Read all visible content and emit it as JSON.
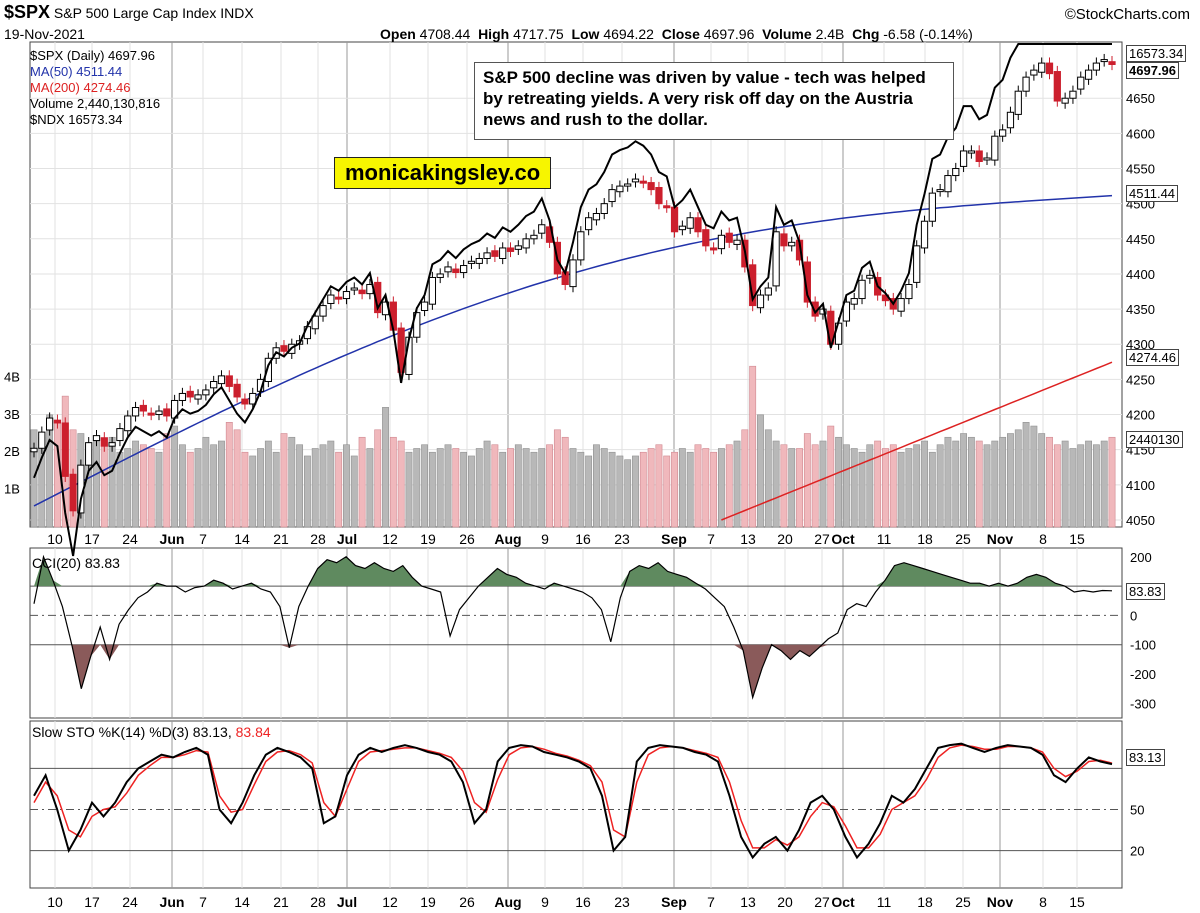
{
  "header": {
    "symbol": "$SPX",
    "name": "S&P 500 Large Cap Index",
    "exchange": "INDX",
    "date": "19-Nov-2021",
    "brand": "©StockCharts.com",
    "stats": {
      "open_label": "Open",
      "open": "4708.44",
      "high_label": "High",
      "high": "4717.75",
      "low_label": "Low",
      "low": "4694.22",
      "close_label": "Close",
      "close": "4697.96",
      "volume_label": "Volume",
      "volume": "2.4B",
      "chg_label": "Chg",
      "chg": "-6.58 (-0.14%)"
    }
  },
  "legend": {
    "spx": "$SPX (Daily) 4697.96",
    "ma50": "MA(50) 4511.44",
    "ma200": "MA(200) 4274.46",
    "volume": "Volume 2,440,130,816",
    "ndx": "$NDX 16573.34"
  },
  "annotation": {
    "note": "S&P 500 decline was driven by value - tech was helped by retreating yields. A very risk off day on the Austria news and rush to the dollar.",
    "site": "monicakingsley.co"
  },
  "colors": {
    "up": "#000000",
    "down": "#cc1f2d",
    "ma50": "#2233aa",
    "ma200": "#dd2222",
    "vol_up": "#b8b8b8",
    "vol_down": "#f0b8bc",
    "cci_pos": "#5f8a5f",
    "cci_neg": "#8a5a5a",
    "sto_d": "#ee2222"
  },
  "chart_data": {
    "type": "candlestick",
    "price_axis": {
      "ylim": [
        4040,
        4730
      ],
      "ticks": [
        4050,
        4100,
        4150,
        4200,
        4250,
        4300,
        4350,
        4400,
        4450,
        4500,
        4550,
        4600,
        4650
      ]
    },
    "volume_axis": {
      "labels": [
        "1B",
        "2B",
        "3B",
        "4B"
      ]
    },
    "x_labels": [
      "10",
      "17",
      "24",
      "Jun",
      "7",
      "14",
      "21",
      "28",
      "Jul",
      "12",
      "19",
      "26",
      "Aug",
      "9",
      "16",
      "23",
      "Sep",
      "7",
      "13",
      "20",
      "27",
      "Oct",
      "11",
      "18",
      "25",
      "Nov",
      "8",
      "15"
    ],
    "month_labels": [
      "Jun",
      "Jul",
      "Aug",
      "Sep",
      "Oct",
      "Nov"
    ],
    "right_tags": {
      "ndx": "16573.34",
      "close": "4697.96",
      "ma50": "4511.44",
      "ma200": "4274.46",
      "volume": "2440130"
    },
    "close": [
      4152,
      4175,
      4195,
      4188,
      4112,
      4063,
      4128,
      4160,
      4170,
      4155,
      4160,
      4180,
      4198,
      4210,
      4205,
      4200,
      4205,
      4198,
      4220,
      4230,
      4225,
      4228,
      4235,
      4247,
      4255,
      4240,
      4225,
      4215,
      4230,
      4250,
      4280,
      4295,
      4290,
      4300,
      4305,
      4325,
      4340,
      4355,
      4370,
      4365,
      4375,
      4380,
      4372,
      4385,
      4345,
      4360,
      4320,
      4260,
      4310,
      4345,
      4360,
      4395,
      4400,
      4410,
      4402,
      4412,
      4418,
      4422,
      4430,
      4425,
      4437,
      4432,
      4440,
      4450,
      4455,
      4470,
      4445,
      4400,
      4385,
      4420,
      4460,
      4480,
      4486,
      4500,
      4520,
      4525,
      4528,
      4535,
      4530,
      4520,
      4500,
      4495,
      4460,
      4468,
      4480,
      4460,
      4440,
      4436,
      4455,
      4445,
      4448,
      4410,
      4355,
      4370,
      4380,
      4460,
      4440,
      4445,
      4420,
      4360,
      4340,
      4350,
      4300,
      4330,
      4360,
      4365,
      4391,
      4398,
      4370,
      4362,
      4350,
      4365,
      4385,
      4440,
      4475,
      4515,
      4520,
      4540,
      4550,
      4575,
      4575,
      4560,
      4565,
      4596,
      4605,
      4630,
      4660,
      4680,
      4690,
      4700,
      4685,
      4646,
      4650,
      4660,
      4680,
      4690,
      4700,
      4705,
      4698
    ],
    "ma50_endpoints": [
      4070,
      4511.44
    ],
    "ma200_endpoints": [
      4050,
      4274.46
    ],
    "volume_bn": [
      2.6,
      2.4,
      3.0,
      2.8,
      3.5,
      2.6,
      2.5,
      2.2,
      2.3,
      2.2,
      2.4,
      2.0,
      2.1,
      2.3,
      2.2,
      2.1,
      2.0,
      2.5,
      2.7,
      2.2,
      2.0,
      2.1,
      2.4,
      2.2,
      2.3,
      2.8,
      2.6,
      2.0,
      1.9,
      2.1,
      2.3,
      2.0,
      2.5,
      2.4,
      2.2,
      1.9,
      2.1,
      2.2,
      2.3,
      2.0,
      2.2,
      1.9,
      2.4,
      2.1,
      2.6,
      3.2,
      2.4,
      2.3,
      2.0,
      2.1,
      2.2,
      2.0,
      2.1,
      2.2,
      2.1,
      2.0,
      1.9,
      2.1,
      2.3,
      2.2,
      2.0,
      2.1,
      2.2,
      2.1,
      2.0,
      2.1,
      2.2,
      2.6,
      2.4,
      2.1,
      2.0,
      1.9,
      2.2,
      2.1,
      2.0,
      1.9,
      1.8,
      1.9,
      2.0,
      2.1,
      2.2,
      1.9,
      2.0,
      2.1,
      2.0,
      2.2,
      2.1,
      2.0,
      2.1,
      2.2,
      2.3,
      2.6,
      4.3,
      3.0,
      2.6,
      2.3,
      2.2,
      2.1,
      2.1,
      2.5,
      2.2,
      2.3,
      2.7,
      2.4,
      2.2,
      2.1,
      2.0,
      2.2,
      2.3,
      2.1,
      2.2,
      2.0,
      2.1,
      2.2,
      2.3,
      2.0,
      2.2,
      2.4,
      2.3,
      2.5,
      2.4,
      2.3,
      2.2,
      2.3,
      2.4,
      2.5,
      2.6,
      2.8,
      2.7,
      2.5,
      2.4,
      2.2,
      2.3,
      2.1,
      2.2,
      2.3,
      2.2,
      2.3,
      2.4
    ],
    "cci": {
      "label": "CCI(20) 83.83",
      "value": "83.83",
      "ylim": [
        -350,
        230
      ],
      "ticks": [
        200,
        0,
        -100,
        -200,
        -300
      ],
      "values": [
        40,
        200,
        120,
        30,
        -100,
        -250,
        -140,
        -40,
        -150,
        -30,
        20,
        60,
        80,
        110,
        100,
        100,
        80,
        95,
        100,
        120,
        110,
        90,
        100,
        110,
        90,
        80,
        30,
        -110,
        30,
        100,
        160,
        190,
        180,
        200,
        170,
        160,
        180,
        160,
        150,
        170,
        130,
        100,
        90,
        80,
        -70,
        20,
        60,
        100,
        130,
        160,
        140,
        130,
        110,
        100,
        90,
        110,
        100,
        90,
        80,
        60,
        20,
        -90,
        60,
        150,
        170,
        160,
        180,
        150,
        140,
        130,
        110,
        90,
        60,
        30,
        -40,
        -120,
        -280,
        -180,
        -100,
        -120,
        -150,
        -120,
        -140,
        -110,
        -80,
        -60,
        20,
        40,
        30,
        80,
        120,
        170,
        180,
        170,
        160,
        150,
        140,
        130,
        120,
        110,
        110,
        100,
        110,
        100,
        110,
        130,
        140,
        130,
        110,
        100,
        80,
        85,
        80,
        85,
        83.83
      ]
    },
    "stochastic": {
      "label": "Slow STO %K(14) %D(3) 83.13,",
      "d_label": "83.84",
      "value": "83.13",
      "ylim": [
        0,
        100
      ],
      "ticks": [
        50,
        20
      ],
      "k": [
        60,
        75,
        50,
        20,
        35,
        55,
        45,
        55,
        70,
        80,
        85,
        90,
        88,
        92,
        95,
        90,
        50,
        40,
        55,
        75,
        90,
        95,
        92,
        88,
        80,
        40,
        45,
        75,
        90,
        95,
        92,
        95,
        97,
        95,
        92,
        90,
        85,
        70,
        40,
        50,
        85,
        95,
        97,
        96,
        92,
        90,
        88,
        85,
        80,
        60,
        20,
        30,
        85,
        95,
        97,
        96,
        95,
        92,
        90,
        85,
        60,
        30,
        15,
        25,
        30,
        20,
        35,
        55,
        60,
        50,
        30,
        15,
        25,
        40,
        60,
        55,
        65,
        80,
        95,
        97,
        98,
        95,
        92,
        95,
        97,
        96,
        95,
        90,
        75,
        70,
        80,
        88,
        85,
        83.13
      ],
      "d": [
        55,
        70,
        60,
        35,
        30,
        45,
        50,
        52,
        62,
        75,
        82,
        88,
        88,
        90,
        93,
        92,
        60,
        48,
        50,
        68,
        85,
        92,
        93,
        90,
        84,
        55,
        45,
        65,
        85,
        92,
        93,
        94,
        95,
        95,
        93,
        91,
        88,
        78,
        55,
        48,
        72,
        90,
        95,
        96,
        94,
        91,
        89,
        86,
        82,
        70,
        35,
        30,
        70,
        90,
        95,
        96,
        95,
        93,
        91,
        88,
        70,
        42,
        22,
        22,
        28,
        24,
        30,
        45,
        55,
        52,
        38,
        22,
        22,
        32,
        50,
        55,
        60,
        72,
        88,
        95,
        97,
        96,
        94,
        94,
        96,
        96,
        95,
        92,
        80,
        74,
        78,
        85,
        86,
        83.84
      ]
    }
  }
}
